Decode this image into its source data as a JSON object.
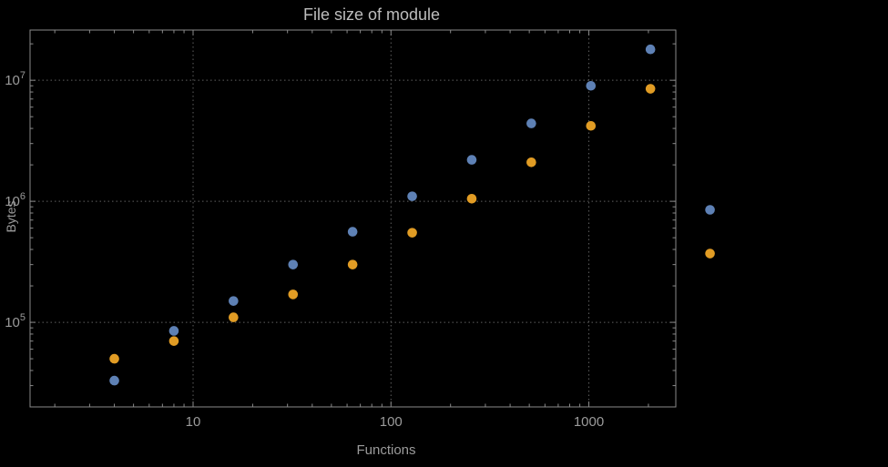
{
  "chart_data": {
    "type": "scatter",
    "title": "File size of module",
    "xlabel": "Functions",
    "ylabel": "Bytes",
    "x_scale": "log",
    "y_scale": "log",
    "grid": "dotted",
    "legend": "none",
    "x": [
      4,
      8,
      16,
      32,
      64,
      128,
      256,
      512,
      1024,
      2048,
      4096
    ],
    "series": [
      {
        "name": "blue",
        "color": "#5e81b5",
        "values": [
          33000,
          85000,
          150000,
          300000,
          560000,
          1100000,
          2200000,
          4400000,
          9000000,
          18000000,
          850000
        ]
      },
      {
        "name": "orange",
        "color": "#e19c24",
        "values": [
          50000,
          70000,
          110000,
          170000,
          300000,
          550000,
          1050000,
          2100000,
          4200000,
          8500000,
          370000
        ]
      }
    ],
    "x_tick_labels": [
      "10",
      "100",
      "1000"
    ],
    "x_tick_values": [
      10,
      100,
      1000
    ],
    "y_tick_exponents": [
      5,
      6,
      7
    ],
    "x_range": [
      1.5,
      2750
    ],
    "y_range": [
      20000,
      26000000
    ]
  },
  "colors": {
    "background": "#000000",
    "frame": "#8a8a8a",
    "grid": "#5f5f5f",
    "tick_text": "#9b9b9b",
    "title_text": "#bdbdbd"
  }
}
